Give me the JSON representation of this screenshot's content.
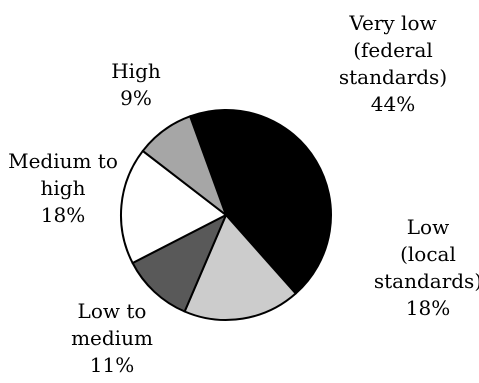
{
  "chart_data": {
    "type": "pie",
    "title": "",
    "start_angle_deg": 70,
    "direction": "clockwise",
    "slices": [
      {
        "label_lines": [
          "Very low",
          "(federal",
          "standards)"
        ],
        "value_label": "44%",
        "value": 44,
        "color": "#000000"
      },
      {
        "label_lines": [
          "Low",
          "(local",
          "standards)"
        ],
        "value_label": "18%",
        "value": 18,
        "color": "#cccccc"
      },
      {
        "label_lines": [
          "Low to",
          "medium"
        ],
        "value_label": "11%",
        "value": 11,
        "color": "#595959"
      },
      {
        "label_lines": [
          "Medium to",
          "high"
        ],
        "value_label": "18%",
        "value": 18,
        "color": "#ffffff"
      },
      {
        "label_lines": [
          "High"
        ],
        "value_label": "9%",
        "value": 9,
        "color": "#a6a6a6"
      }
    ]
  }
}
